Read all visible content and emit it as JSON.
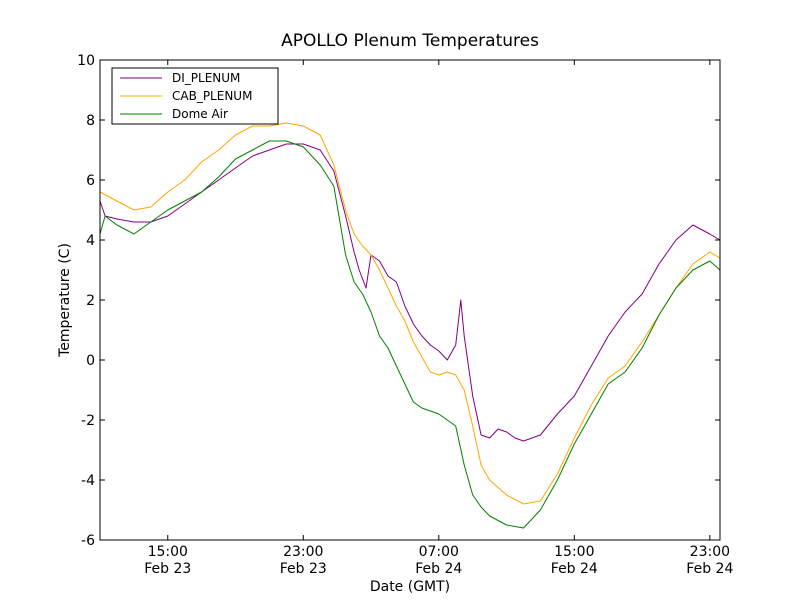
{
  "chart_data": {
    "type": "line",
    "title": "APOLLO Plenum Temperatures",
    "xlabel": "Date (GMT)",
    "ylabel": "Temperature (C)",
    "ylim": [
      -6,
      10
    ],
    "xlim_hours": [
      11.0,
      47.6
    ],
    "yticks": [
      10,
      8,
      6,
      4,
      2,
      0,
      -2,
      -4,
      -6
    ],
    "ytick_labels": [
      "10",
      "8",
      "6",
      "4",
      "2",
      "0",
      "-2",
      "-4",
      "-6"
    ],
    "xticks": [
      {
        "hour": 15,
        "time": "15:00",
        "date": "Feb 23"
      },
      {
        "hour": 23,
        "time": "23:00",
        "date": "Feb 23"
      },
      {
        "hour": 31,
        "time": "07:00",
        "date": "Feb 24"
      },
      {
        "hour": 39,
        "time": "15:00",
        "date": "Feb 24"
      },
      {
        "hour": 47,
        "time": "23:00",
        "date": "Feb 24"
      }
    ],
    "legend_position": "top-left",
    "series": [
      {
        "name": "DI_PLENUM",
        "color": "#800080",
        "x": [
          11.0,
          11.3,
          12.0,
          13.0,
          14.0,
          15.0,
          16.0,
          17.0,
          18.0,
          19.0,
          20.0,
          21.0,
          22.0,
          23.0,
          24.0,
          24.8,
          25.5,
          26.0,
          26.3,
          26.7,
          27.0,
          27.5,
          27.8,
          28.0,
          28.5,
          29.0,
          29.5,
          30.0,
          30.5,
          31.0,
          31.5,
          32.0,
          32.3,
          32.5,
          32.7,
          33.0,
          33.5,
          34.0,
          34.5,
          35.0,
          35.5,
          36.0,
          36.5,
          37.0,
          38.0,
          39.0,
          40.0,
          41.0,
          42.0,
          43.0,
          44.0,
          45.0,
          46.0,
          47.0,
          47.6
        ],
        "y": [
          5.3,
          4.8,
          4.7,
          4.6,
          4.6,
          4.8,
          5.2,
          5.6,
          6.0,
          6.4,
          6.8,
          7.0,
          7.2,
          7.2,
          7.0,
          6.3,
          4.8,
          3.6,
          3.0,
          2.4,
          3.5,
          3.3,
          3.0,
          2.8,
          2.6,
          1.8,
          1.2,
          0.8,
          0.5,
          0.3,
          0.0,
          0.5,
          2.0,
          0.8,
          0.0,
          -1.2,
          -2.5,
          -2.6,
          -2.3,
          -2.4,
          -2.6,
          -2.7,
          -2.6,
          -2.5,
          -1.8,
          -1.2,
          -0.2,
          0.8,
          1.6,
          2.2,
          3.2,
          4.0,
          4.5,
          4.2,
          4.0
        ]
      },
      {
        "name": "CAB_PLENUM",
        "color": "#FFA500",
        "x": [
          11.0,
          12.0,
          13.0,
          14.0,
          15.0,
          16.0,
          17.0,
          18.0,
          19.0,
          20.0,
          21.0,
          22.0,
          23.0,
          24.0,
          24.8,
          25.5,
          26.0,
          26.5,
          27.0,
          27.5,
          28.0,
          28.5,
          29.0,
          29.5,
          30.0,
          30.5,
          31.0,
          31.5,
          32.0,
          32.5,
          33.0,
          33.5,
          34.0,
          35.0,
          36.0,
          37.0,
          38.0,
          39.0,
          40.0,
          41.0,
          42.0,
          43.0,
          44.0,
          45.0,
          46.0,
          47.0,
          47.6
        ],
        "y": [
          5.6,
          5.3,
          5.0,
          5.1,
          5.6,
          6.0,
          6.6,
          7.0,
          7.5,
          7.8,
          7.8,
          7.9,
          7.8,
          7.5,
          6.5,
          5.0,
          4.2,
          3.8,
          3.5,
          3.0,
          2.4,
          1.8,
          1.3,
          0.6,
          0.1,
          -0.4,
          -0.5,
          -0.4,
          -0.5,
          -1.0,
          -2.2,
          -3.5,
          -4.0,
          -4.5,
          -4.8,
          -4.7,
          -3.8,
          -2.6,
          -1.5,
          -0.6,
          -0.2,
          0.6,
          1.5,
          2.4,
          3.2,
          3.6,
          3.4
        ]
      },
      {
        "name": "Dome Air",
        "color": "#008000",
        "x": [
          11.0,
          11.3,
          12.0,
          13.0,
          14.0,
          15.0,
          16.0,
          17.0,
          18.0,
          19.0,
          20.0,
          21.0,
          22.0,
          23.0,
          24.0,
          24.8,
          25.5,
          26.0,
          26.5,
          27.0,
          27.5,
          28.0,
          28.5,
          29.0,
          29.5,
          30.0,
          30.5,
          31.0,
          31.5,
          32.0,
          32.5,
          33.0,
          33.5,
          34.0,
          35.0,
          36.0,
          37.0,
          38.0,
          39.0,
          40.0,
          41.0,
          42.0,
          43.0,
          44.0,
          45.0,
          46.0,
          47.0,
          47.6
        ],
        "y": [
          4.2,
          4.8,
          4.5,
          4.2,
          4.6,
          5.0,
          5.3,
          5.6,
          6.1,
          6.7,
          7.0,
          7.3,
          7.3,
          7.1,
          6.5,
          5.8,
          3.5,
          2.6,
          2.2,
          1.6,
          0.8,
          0.4,
          -0.2,
          -0.8,
          -1.4,
          -1.6,
          -1.7,
          -1.8,
          -2.0,
          -2.2,
          -3.5,
          -4.5,
          -4.9,
          -5.2,
          -5.5,
          -5.6,
          -5.0,
          -4.0,
          -2.8,
          -1.8,
          -0.8,
          -0.4,
          0.4,
          1.5,
          2.4,
          3.0,
          3.3,
          3.0
        ]
      }
    ]
  }
}
